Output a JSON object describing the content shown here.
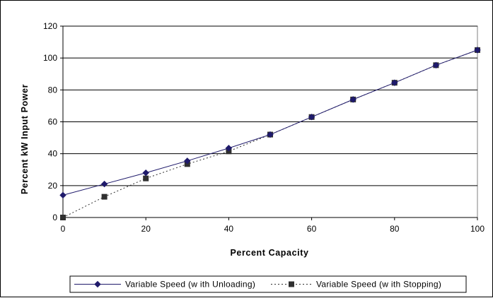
{
  "chart_data": {
    "type": "line",
    "title": "",
    "xlabel": "Percent Capacity",
    "ylabel": "Percent kW Input Power",
    "xlim": [
      0,
      100
    ],
    "ylim": [
      0,
      120
    ],
    "x_ticks": [
      0,
      20,
      40,
      60,
      80,
      100
    ],
    "y_ticks": [
      0,
      20,
      40,
      60,
      80,
      100,
      120
    ],
    "grid": "horizontal",
    "legend_position": "bottom",
    "x": [
      0,
      10,
      20,
      30,
      40,
      50,
      60,
      70,
      80,
      90,
      100
    ],
    "series": [
      {
        "name": "Variable Speed (w ith Unloading)",
        "values": [
          14,
          21,
          28,
          35.5,
          43.5,
          52,
          63,
          74,
          84.5,
          95.5,
          105
        ],
        "color": "#1f1a6b",
        "marker": "diamond",
        "line_style": "solid"
      },
      {
        "name": "Variable Speed (w ith Stopping)",
        "values": [
          0,
          13,
          24.5,
          33.5,
          41.5,
          52,
          63,
          74,
          84.5,
          95.5,
          105
        ],
        "color": "#303030",
        "marker": "square",
        "line_style": "dotted"
      }
    ]
  }
}
